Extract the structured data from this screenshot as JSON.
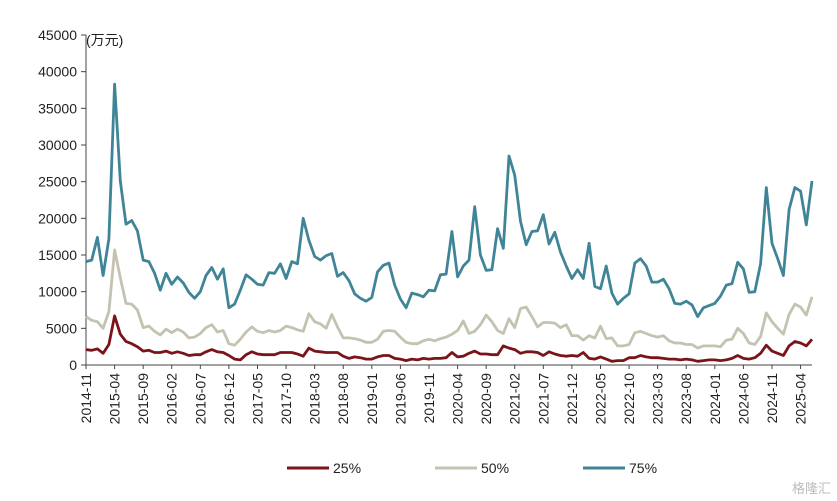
{
  "watermark": "格隆汇",
  "chart_data": {
    "type": "line",
    "unit_label": "(万元)",
    "ylim": [
      0,
      45000
    ],
    "yticks": [
      0,
      5000,
      10000,
      15000,
      20000,
      25000,
      30000,
      35000,
      40000,
      45000
    ],
    "x_labels": [
      "2014-11",
      "2015-04",
      "2015-09",
      "2016-02",
      "2016-07",
      "2016-12",
      "2017-05",
      "2017-10",
      "2018-03",
      "2018-08",
      "2019-01",
      "2019-06",
      "2019-11",
      "2020-04",
      "2020-09",
      "2021-02",
      "2021-07",
      "2021-12",
      "2022-05",
      "2022-10",
      "2023-03",
      "2023-08",
      "2024-01",
      "2024-06",
      "2024-11",
      "2025-04"
    ],
    "grid": false,
    "legend_position": "bottom-center",
    "colors": {
      "25%": "#7a1418",
      "50%": "#c4c2b0",
      "75%": "#3f8597"
    },
    "series": [
      {
        "name": "25%",
        "values": [
          2100,
          2000,
          2200,
          1600,
          2800,
          6700,
          4200,
          3200,
          2900,
          2500,
          1900,
          2000,
          1700,
          1700,
          1900,
          1600,
          1800,
          1600,
          1300,
          1400,
          1400,
          1800,
          2100,
          1800,
          1700,
          1300,
          800,
          700,
          1400,
          1800,
          1500,
          1400,
          1400,
          1400,
          1700,
          1700,
          1700,
          1500,
          1200,
          2300,
          1900,
          1800,
          1700,
          1700,
          1700,
          1200,
          900,
          1100,
          1000,
          800,
          800,
          1100,
          1300,
          1300,
          900,
          800,
          600,
          800,
          700,
          900,
          800,
          900,
          900,
          1000,
          1700,
          1100,
          1200,
          1600,
          1900,
          1500,
          1500,
          1400,
          1400,
          2600,
          2300,
          2100,
          1600,
          1800,
          1800,
          1700,
          1300,
          1800,
          1500,
          1300,
          1200,
          1300,
          1200,
          1700,
          900,
          800,
          1100,
          800,
          500,
          600,
          600,
          1000,
          1000,
          1300,
          1100,
          1000,
          1000,
          900,
          800,
          800,
          700,
          800,
          700,
          500,
          600,
          700,
          700,
          600,
          700,
          900,
          1300,
          900,
          800,
          1000,
          1600,
          2700,
          1900,
          1600,
          1300,
          2600,
          3200,
          3000,
          2600,
          3500
        ]
      },
      {
        "name": "50%",
        "values": [
          6600,
          6100,
          5900,
          5000,
          7300,
          15700,
          11900,
          8400,
          8300,
          7500,
          5100,
          5300,
          4600,
          4100,
          4900,
          4400,
          4900,
          4500,
          3700,
          3800,
          4300,
          5100,
          5500,
          4500,
          4700,
          2900,
          2700,
          3500,
          4500,
          5200,
          4600,
          4400,
          4700,
          4500,
          4700,
          5300,
          5100,
          4800,
          4600,
          7000,
          5900,
          5600,
          5000,
          6900,
          5200,
          3700,
          3700,
          3600,
          3400,
          3100,
          3100,
          3500,
          4600,
          4700,
          4600,
          3800,
          3100,
          2900,
          2900,
          3300,
          3500,
          3300,
          3600,
          3800,
          4200,
          4700,
          6000,
          4300,
          4600,
          5500,
          6800,
          5900,
          4700,
          4300,
          6300,
          5100,
          7700,
          7900,
          6600,
          5200,
          5800,
          5800,
          5700,
          5100,
          5500,
          4000,
          4000,
          3400,
          4000,
          3700,
          5300,
          3600,
          3700,
          2600,
          2600,
          2800,
          4400,
          4600,
          4300,
          4000,
          3800,
          4000,
          3300,
          3000,
          3000,
          2800,
          2800,
          2300,
          2600,
          2600,
          2600,
          2500,
          3400,
          3500,
          5000,
          4300,
          3000,
          2800,
          3900,
          7100,
          5900,
          5000,
          4200,
          6900,
          8300,
          7900,
          6800,
          9300
        ]
      },
      {
        "name": "75%",
        "values": [
          14100,
          14300,
          17400,
          12200,
          17200,
          38300,
          25100,
          19200,
          19700,
          18300,
          14300,
          14100,
          12500,
          10200,
          12500,
          11000,
          12000,
          11200,
          9900,
          9100,
          10000,
          12200,
          13300,
          11700,
          13100,
          7800,
          8300,
          10200,
          12300,
          11700,
          11000,
          10900,
          12600,
          12500,
          13800,
          11800,
          14100,
          13800,
          20000,
          17000,
          14800,
          14300,
          14900,
          15200,
          12100,
          12600,
          11500,
          9700,
          9100,
          8700,
          9200,
          12700,
          13600,
          13900,
          10900,
          9000,
          7800,
          9800,
          9600,
          9300,
          10200,
          10100,
          12300,
          12400,
          18200,
          12000,
          13500,
          14300,
          21600,
          15000,
          12900,
          13000,
          18600,
          15900,
          28500,
          25900,
          19600,
          16400,
          18200,
          18300,
          20500,
          16500,
          18100,
          15400,
          13500,
          11800,
          13000,
          11800,
          16600,
          10700,
          10400,
          13500,
          9800,
          8300,
          9100,
          9700,
          13900,
          14500,
          13500,
          11300,
          11300,
          11700,
          10400,
          8400,
          8300,
          8700,
          8200,
          6600,
          7800,
          8100,
          8400,
          9400,
          10900,
          11100,
          14000,
          13100,
          9900,
          10000,
          13800,
          24200,
          16600,
          14500,
          12200,
          21200,
          24200,
          23700,
          19100,
          25100
        ]
      }
    ]
  }
}
